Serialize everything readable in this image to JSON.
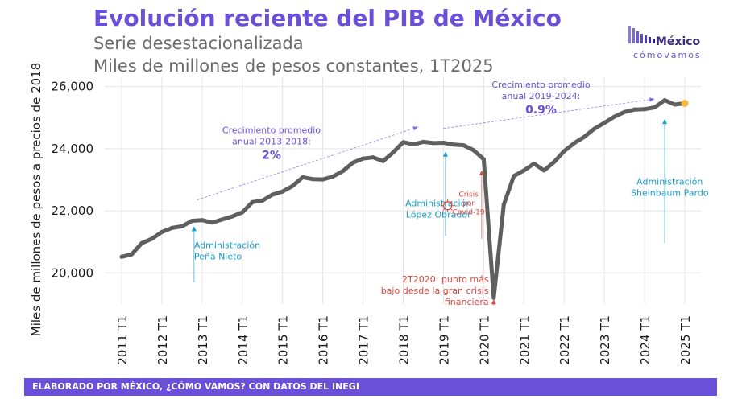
{
  "chart_data": {
    "type": "line",
    "title": "Evolución reciente del PIB de México",
    "subtitle_lines": [
      "Serie desestacionalizada",
      "Miles de millones de pesos constantes, 1T2025"
    ],
    "ylabel": "Miles de millones de pesos a precios de 2018",
    "xlabel": "",
    "ylim": [
      19000,
      26300
    ],
    "yticks": [
      20000,
      22000,
      24000,
      26000
    ],
    "ytick_labels": [
      "20,000",
      "22,000",
      "24,000",
      "26,000"
    ],
    "xtick_labels": [
      "2011 T1",
      "2012 T1",
      "2013 T1",
      "2014 T1",
      "2015 T1",
      "2016 T1",
      "2017 T1",
      "2018 T1",
      "2019 T1",
      "2020 T1",
      "2021 T1",
      "2022 T1",
      "2023 T1",
      "2024 T1",
      "2025 T1"
    ],
    "grid": true,
    "series": [
      {
        "color": "#5f5f5f",
        "last_point_color": "#f5b942",
        "points": [
          [
            "2011 T1",
            20520
          ],
          [
            "2011 T2",
            20600
          ],
          [
            "2011 T3",
            20960
          ],
          [
            "2011 T4",
            21100
          ],
          [
            "2012 T1",
            21320
          ],
          [
            "2012 T2",
            21450
          ],
          [
            "2012 T3",
            21500
          ],
          [
            "2012 T4",
            21680
          ],
          [
            "2013 T1",
            21700
          ],
          [
            "2013 T2",
            21620
          ],
          [
            "2013 T3",
            21720
          ],
          [
            "2013 T4",
            21820
          ],
          [
            "2014 T1",
            21950
          ],
          [
            "2014 T2",
            22280
          ],
          [
            "2014 T3",
            22330
          ],
          [
            "2014 T4",
            22520
          ],
          [
            "2015 T1",
            22620
          ],
          [
            "2015 T2",
            22800
          ],
          [
            "2015 T3",
            23080
          ],
          [
            "2015 T4",
            23020
          ],
          [
            "2016 T1",
            23010
          ],
          [
            "2016 T2",
            23100
          ],
          [
            "2016 T3",
            23280
          ],
          [
            "2016 T4",
            23550
          ],
          [
            "2017 T1",
            23680
          ],
          [
            "2017 T2",
            23720
          ],
          [
            "2017 T3",
            23600
          ],
          [
            "2017 T4",
            23880
          ],
          [
            "2018 T1",
            24210
          ],
          [
            "2018 T2",
            24140
          ],
          [
            "2018 T3",
            24220
          ],
          [
            "2018 T4",
            24180
          ],
          [
            "2019 T1",
            24190
          ],
          [
            "2019 T2",
            24130
          ],
          [
            "2019 T3",
            24110
          ],
          [
            "2019 T4",
            23950
          ],
          [
            "2020 T1",
            23660
          ],
          [
            "2020 T2",
            19200
          ],
          [
            "2020 T3",
            22200
          ],
          [
            "2020 T4",
            23120
          ],
          [
            "2021 T1",
            23300
          ],
          [
            "2021 T2",
            23520
          ],
          [
            "2021 T3",
            23300
          ],
          [
            "2021 T4",
            23570
          ],
          [
            "2022 T1",
            23920
          ],
          [
            "2022 T2",
            24180
          ],
          [
            "2022 T3",
            24380
          ],
          [
            "2022 T4",
            24640
          ],
          [
            "2023 T1",
            24830
          ],
          [
            "2023 T2",
            25030
          ],
          [
            "2023 T3",
            25180
          ],
          [
            "2023 T4",
            25260
          ],
          [
            "2024 T1",
            25270
          ],
          [
            "2024 T2",
            25330
          ],
          [
            "2024 T3",
            25560
          ],
          [
            "2024 T4",
            25420
          ],
          [
            "2025 T1",
            25460
          ]
        ]
      }
    ],
    "annotations": [
      {
        "lines": [
          "Administración",
          "Peña Nieto"
        ],
        "color": "#1a9bc4",
        "align": "start",
        "at_x": 7.2,
        "at_y": 20800,
        "arrow": {
          "x": 7.2,
          "y_from": 19700,
          "y_to": 21500
        }
      },
      {
        "lines": [
          "Administración",
          "López Obrador"
        ],
        "color": "#1a9bc4",
        "align": "middle",
        "at_x": 31.5,
        "at_y": 22150,
        "arrow": {
          "x": 32.2,
          "y_from": 21200,
          "y_to": 23900
        }
      },
      {
        "lines": [
          "Administración",
          "Sheinbaum Pardo"
        ],
        "color": "#1a9bc4",
        "align": "middle",
        "at_x": 54.5,
        "at_y": 22850,
        "arrow": {
          "x": 54.0,
          "y_from": 20950,
          "y_to": 24950
        }
      },
      {
        "lines": [
          "Crisis",
          "por",
          "Covid-19"
        ],
        "color": "#e0453a",
        "align": "middle",
        "at_x": 34.5,
        "at_y": 22450,
        "arrow": {
          "x": 35.8,
          "y_from": 21100,
          "y_to": 23300
        }
      },
      {
        "lines": [
          "2T2020: punto más",
          "bajo desde la gran crisis",
          "financiera"
        ],
        "color": "#e0453a",
        "align": "end",
        "at_x": 36.5,
        "at_y": 19700,
        "arrow": {
          "x": 37.0,
          "y_from": 18950,
          "y_to": 19150
        }
      },
      {
        "lines": [
          "Crecimiento promedio",
          "anual 2013-2018:"
        ],
        "color": "#6a4fd8",
        "align": "middle",
        "at_x": 14.9,
        "at_y": 24500,
        "bold_line": "2%",
        "arrow": {
          "x_from": 7.5,
          "y_from": 22350,
          "x_to": 29.5,
          "y_to": 24700
        }
      },
      {
        "lines": [
          "Crecimiento promedio",
          "anual 2019-2024:"
        ],
        "color": "#6a4fd8",
        "align": "middle",
        "at_x": 41.7,
        "at_y": 25960,
        "bold_line": "0.9%",
        "arrow": {
          "x_from": 32.0,
          "y_from": 24650,
          "x_to": 53.0,
          "y_to": 25600
        }
      }
    ]
  },
  "logo": {
    "brand_top": "México",
    "brand_bottom": "cómovamos"
  },
  "footer": {
    "text": "ELABORADO POR MÉXICO, ¿CÓMO VAMOS? CON DATOS DEL INEGI"
  }
}
